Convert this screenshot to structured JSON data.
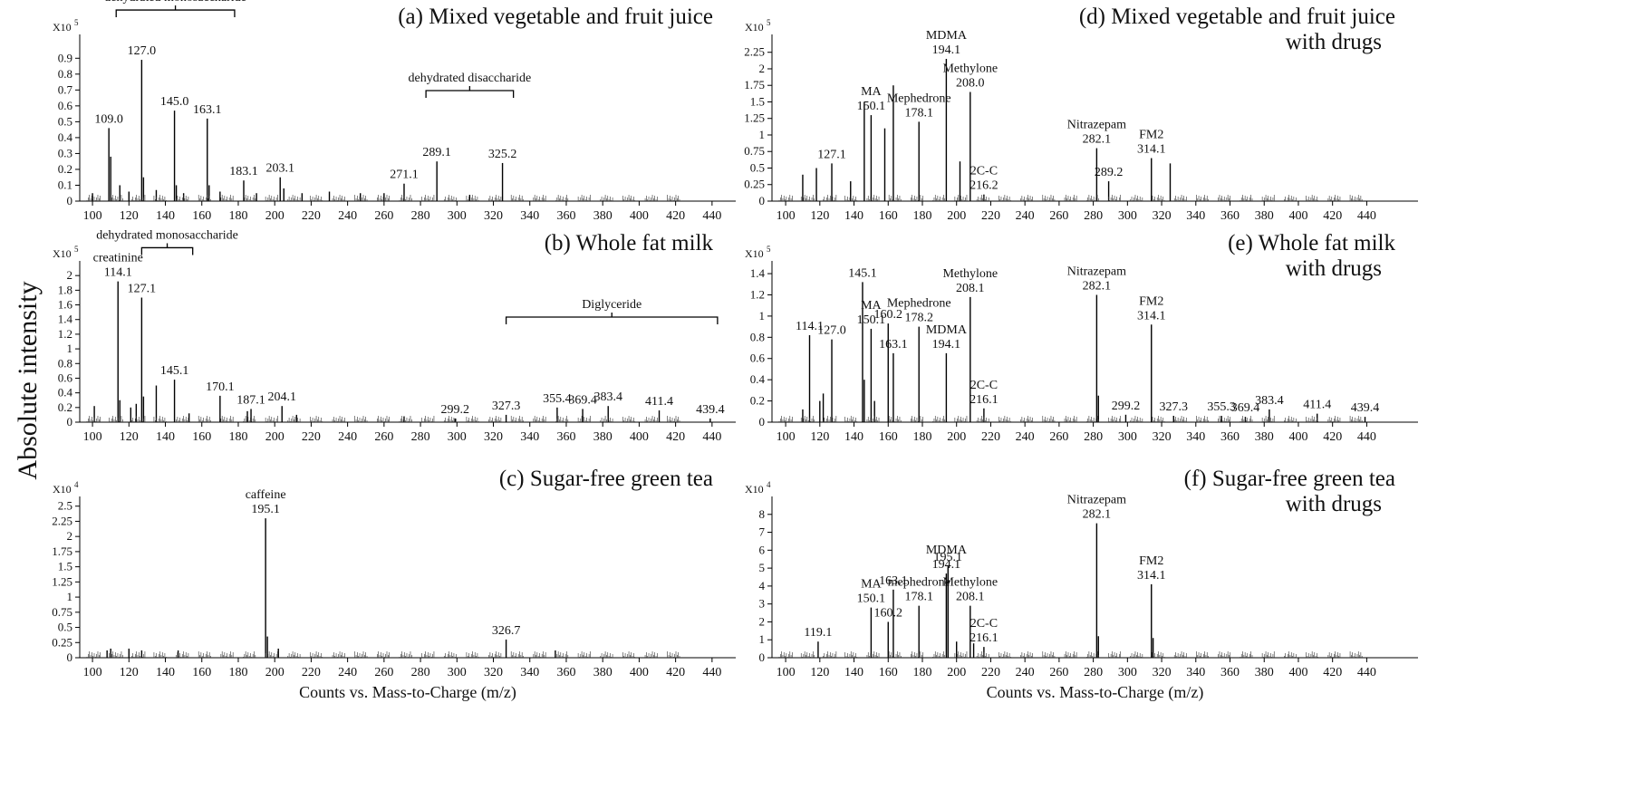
{
  "y_label": "Absolute intensity",
  "chart_data": [
    {
      "type": "bar",
      "title": "(a) Mixed vegetable and fruit juice",
      "color": "#000000",
      "y_scale": {
        "base": "X10",
        "exponent": "5"
      },
      "xlim": [
        93,
        453
      ],
      "xticks": [
        100,
        120,
        140,
        160,
        180,
        200,
        220,
        240,
        260,
        280,
        300,
        320,
        340,
        360,
        380,
        400,
        420,
        440
      ],
      "ylim": [
        0,
        1.05
      ],
      "yticks": [
        0,
        0.1,
        0.2,
        0.3,
        0.4,
        0.5,
        0.6,
        0.7,
        0.8,
        0.9
      ],
      "groups": [
        {
          "label": "dehydrated monosaccharide",
          "range": [
            113,
            178
          ]
        },
        {
          "label": "dehydrated disaccharide",
          "range": [
            283,
            331
          ]
        }
      ],
      "x": [
        100,
        109,
        110,
        115,
        120,
        127,
        128,
        135,
        145,
        146,
        150,
        163,
        164,
        170,
        183,
        190,
        203,
        205,
        215,
        230,
        247,
        260,
        271,
        289,
        307,
        325
      ],
      "values": [
        0.05,
        0.46,
        0.28,
        0.1,
        0.06,
        0.89,
        0.15,
        0.07,
        0.57,
        0.1,
        0.05,
        0.52,
        0.1,
        0.06,
        0.13,
        0.05,
        0.15,
        0.08,
        0.05,
        0.06,
        0.05,
        0.05,
        0.11,
        0.25,
        0.04,
        0.24
      ],
      "peak_labels": [
        null,
        "109.0",
        null,
        null,
        null,
        "127.0",
        null,
        null,
        "145.0",
        null,
        null,
        "163.1",
        null,
        null,
        "183.1",
        null,
        "203.1",
        null,
        null,
        null,
        null,
        null,
        "271.1",
        "289.1",
        null,
        "325.2"
      ],
      "compound_labels": [
        null,
        null,
        null,
        null,
        null,
        null,
        null,
        null,
        null,
        null,
        null,
        null,
        null,
        null,
        null,
        null,
        null,
        null,
        null,
        null,
        null,
        null,
        null,
        null,
        null,
        null
      ]
    },
    {
      "type": "bar",
      "title": "(b) Whole fat milk",
      "color": "#000000",
      "y_scale": {
        "base": "X10",
        "exponent": "5"
      },
      "xlim": [
        93,
        453
      ],
      "xticks": [
        100,
        120,
        140,
        160,
        180,
        200,
        220,
        240,
        260,
        280,
        300,
        320,
        340,
        360,
        380,
        400,
        420,
        440
      ],
      "ylim": [
        0,
        2.2
      ],
      "yticks": [
        0,
        0.2,
        0.4,
        0.6,
        0.8,
        1,
        1.2,
        1.4,
        1.6,
        1.8,
        2
      ],
      "groups": [
        {
          "label": "dehydrated monosaccharide",
          "range": [
            127,
            155
          ]
        },
        {
          "label": "Diglyceride",
          "range": [
            327,
            443
          ]
        }
      ],
      "x": [
        101,
        114,
        115,
        121,
        124,
        127,
        128,
        135,
        145,
        153,
        170,
        185,
        187,
        204,
        212,
        271,
        299,
        327,
        355,
        369,
        383,
        411,
        439
      ],
      "values": [
        0.22,
        1.92,
        0.3,
        0.2,
        0.25,
        1.7,
        0.35,
        0.5,
        0.58,
        0.12,
        0.36,
        0.15,
        0.18,
        0.22,
        0.1,
        0.08,
        0.05,
        0.1,
        0.2,
        0.18,
        0.22,
        0.16,
        0.05
      ],
      "peak_labels": [
        null,
        "114.1",
        null,
        null,
        null,
        "127.1",
        null,
        null,
        "145.1",
        null,
        "170.1",
        null,
        "187.1",
        "204.1",
        null,
        null,
        "299.2",
        "327.3",
        "355.4",
        "369.4",
        "383.4",
        "411.4",
        "439.4"
      ],
      "compound_labels": [
        null,
        "creatinine",
        null,
        null,
        null,
        null,
        null,
        null,
        null,
        null,
        null,
        null,
        null,
        null,
        null,
        null,
        null,
        null,
        null,
        null,
        null,
        null,
        null
      ]
    },
    {
      "type": "bar",
      "title": "(c) Sugar-free green tea",
      "color": "#000000",
      "x_label": "Counts vs. Mass-to-Charge (m/z)",
      "y_scale": {
        "base": "X10",
        "exponent": "4"
      },
      "xlim": [
        93,
        453
      ],
      "xticks": [
        100,
        120,
        140,
        160,
        180,
        200,
        220,
        240,
        260,
        280,
        300,
        320,
        340,
        360,
        380,
        400,
        420,
        440
      ],
      "ylim": [
        0,
        2.66
      ],
      "yticks": [
        0,
        0.25,
        0.5,
        0.75,
        1,
        1.25,
        1.5,
        1.75,
        2,
        2.25,
        2.5
      ],
      "groups": [],
      "x": [
        108,
        110,
        120,
        127,
        147,
        195,
        196,
        202,
        327,
        354
      ],
      "values": [
        0.12,
        0.15,
        0.15,
        0.12,
        0.12,
        2.3,
        0.35,
        0.15,
        0.3,
        0.12
      ],
      "peak_labels": [
        null,
        null,
        null,
        null,
        null,
        "195.1",
        null,
        null,
        "326.7",
        null
      ],
      "compound_labels": [
        null,
        null,
        null,
        null,
        null,
        "caffeine",
        null,
        null,
        null,
        null
      ]
    },
    {
      "type": "bar",
      "title": "(d) Mixed vegetable and fruit juice",
      "subtitle": "with drugs",
      "color": "#000000",
      "y_scale": {
        "base": "X10",
        "exponent": "5"
      },
      "xlim": [
        92,
        470
      ],
      "xticks": [
        100,
        120,
        140,
        160,
        180,
        200,
        220,
        240,
        260,
        280,
        300,
        320,
        340,
        360,
        380,
        400,
        420,
        440
      ],
      "ylim": [
        0,
        2.52
      ],
      "yticks": [
        0,
        0.25,
        0.5,
        0.75,
        1,
        1.25,
        1.5,
        1.75,
        2,
        2.25
      ],
      "groups": [],
      "x": [
        110,
        118,
        127,
        138,
        146,
        150,
        158,
        163,
        178,
        194,
        202,
        208,
        216,
        282,
        289,
        314,
        325
      ],
      "values": [
        0.4,
        0.5,
        0.57,
        0.3,
        1.5,
        1.3,
        1.1,
        1.75,
        1.2,
        2.15,
        0.6,
        1.65,
        0.1,
        0.8,
        0.3,
        0.65,
        0.57
      ],
      "peak_labels": [
        null,
        null,
        "127.1",
        null,
        null,
        "150.1",
        null,
        null,
        "178.1",
        "194.1",
        null,
        "208.0",
        "216.2",
        "282.1",
        "289.2",
        "314.1",
        null
      ],
      "compound_labels": [
        null,
        null,
        null,
        null,
        null,
        "MA",
        null,
        null,
        "Mephedrone",
        "MDMA",
        null,
        "Methylone",
        "2C-C",
        "Nitrazepam",
        null,
        "FM2",
        null
      ]
    },
    {
      "type": "bar",
      "title": "(e) Whole fat milk",
      "subtitle": "with drugs",
      "color": "#000000",
      "y_scale": {
        "base": "X10",
        "exponent": "5"
      },
      "xlim": [
        92,
        470
      ],
      "xticks": [
        100,
        120,
        140,
        160,
        180,
        200,
        220,
        240,
        260,
        280,
        300,
        320,
        340,
        360,
        380,
        400,
        420,
        440
      ],
      "ylim": [
        0,
        1.52
      ],
      "yticks": [
        0,
        0.2,
        0.4,
        0.6,
        0.8,
        1,
        1.2,
        1.4
      ],
      "groups": [],
      "x": [
        110,
        114,
        120,
        122,
        127,
        145,
        146,
        150,
        152,
        160,
        163,
        178,
        194,
        208,
        216,
        282,
        283,
        299,
        314,
        327,
        355,
        369,
        383,
        411,
        439
      ],
      "values": [
        0.12,
        0.82,
        0.2,
        0.27,
        0.78,
        1.32,
        0.4,
        0.88,
        0.2,
        0.93,
        0.65,
        0.9,
        0.65,
        1.18,
        0.13,
        1.2,
        0.25,
        0.07,
        0.92,
        0.06,
        0.06,
        0.05,
        0.12,
        0.08,
        0.05
      ],
      "peak_labels": [
        null,
        "114.1",
        null,
        null,
        "127.0",
        "145.1",
        null,
        "150.1",
        null,
        "160.2",
        "163.1",
        "178.2",
        "194.1",
        "208.1",
        "216.1",
        "282.1",
        null,
        "299.2",
        "314.1",
        "327.3",
        "355.3",
        "369.4",
        "383.4",
        "411.4",
        "439.4"
      ],
      "compound_labels": [
        null,
        null,
        null,
        null,
        null,
        null,
        null,
        "MA",
        null,
        null,
        null,
        "Mephedrone",
        "MDMA",
        "Methylone",
        "2C-C",
        "Nitrazepam",
        null,
        null,
        "FM2",
        null,
        null,
        null,
        null,
        null,
        null
      ]
    },
    {
      "type": "bar",
      "title": "(f) Sugar-free green tea",
      "subtitle": "with drugs",
      "color": "#000000",
      "x_label": "Counts vs. Mass-to-Charge (m/z)",
      "y_scale": {
        "base": "X10",
        "exponent": "4"
      },
      "xlim": [
        92,
        470
      ],
      "xticks": [
        100,
        120,
        140,
        160,
        180,
        200,
        220,
        240,
        260,
        280,
        300,
        320,
        340,
        360,
        380,
        400,
        420,
        440
      ],
      "ylim": [
        0,
        9
      ],
      "yticks": [
        0,
        1,
        2,
        3,
        4,
        5,
        6,
        7,
        8
      ],
      "groups": [],
      "x": [
        119,
        150,
        160,
        163,
        178,
        194,
        195,
        200,
        208,
        210,
        216,
        282,
        283,
        314,
        315
      ],
      "values": [
        0.9,
        2.8,
        2.0,
        3.8,
        2.9,
        4.7,
        5.1,
        0.9,
        2.9,
        0.8,
        0.6,
        7.5,
        1.2,
        4.1,
        1.1
      ],
      "peak_labels": [
        "119.1",
        "150.1",
        "160.2",
        "163.1",
        "178.1",
        "194.1",
        "195.1",
        null,
        "208.1",
        null,
        "216.1",
        "282.1",
        null,
        "314.1",
        null
      ],
      "compound_labels": [
        null,
        "MA",
        null,
        null,
        "mephedrone",
        "MDMA",
        null,
        null,
        "Methylone",
        null,
        "2C-C",
        "Nitrazepam",
        null,
        "FM2",
        null
      ]
    }
  ]
}
